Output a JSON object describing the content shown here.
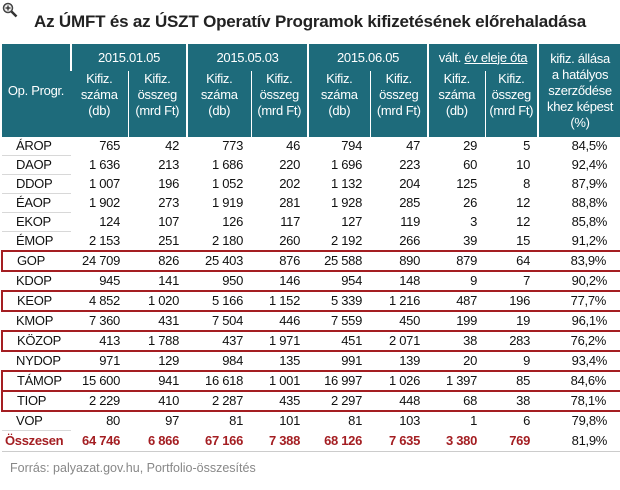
{
  "title": "Az ÚMFT és az ÚSZT Operatív Programok kifizetésének előrehaladása",
  "header": {
    "op_col": "Op. Progr.",
    "groups": [
      "2015.01.05",
      "2015.05.03",
      "2015.06.05"
    ],
    "change_prefix": "vált.",
    "change_link": "év eleje óta",
    "sub_count": [
      "Kifiz.",
      "száma",
      "(db)"
    ],
    "sub_amount": [
      "Kifiz.",
      "összeg",
      "(mrd Ft)"
    ],
    "last_col": [
      "kifiz. állása",
      "a hatályos",
      "szerződése",
      "khez képest",
      "(%)"
    ]
  },
  "rows": [
    {
      "name": "ÁROP",
      "v": [
        "765",
        "42",
        "773",
        "46",
        "794",
        "47",
        "29",
        "5",
        "84,5%"
      ],
      "highlight": false
    },
    {
      "name": "DAOP",
      "v": [
        "1 636",
        "213",
        "1 686",
        "220",
        "1 696",
        "223",
        "60",
        "10",
        "92,4%"
      ],
      "highlight": false
    },
    {
      "name": "DDOP",
      "v": [
        "1 007",
        "196",
        "1 052",
        "202",
        "1 132",
        "204",
        "125",
        "8",
        "87,9%"
      ],
      "highlight": false
    },
    {
      "name": "ÉAOP",
      "v": [
        "1 902",
        "273",
        "1 919",
        "281",
        "1 928",
        "285",
        "26",
        "12",
        "88,8%"
      ],
      "highlight": false
    },
    {
      "name": "EKOP",
      "v": [
        "124",
        "107",
        "126",
        "117",
        "127",
        "119",
        "3",
        "12",
        "85,8%"
      ],
      "highlight": false
    },
    {
      "name": "ÉMOP",
      "v": [
        "2 153",
        "251",
        "2 180",
        "260",
        "2 192",
        "266",
        "39",
        "15",
        "91,2%"
      ],
      "highlight": false
    },
    {
      "name": "GOP",
      "v": [
        "24 709",
        "826",
        "25 403",
        "876",
        "25 588",
        "890",
        "879",
        "64",
        "83,9%"
      ],
      "highlight": true
    },
    {
      "name": "KDOP",
      "v": [
        "945",
        "141",
        "950",
        "146",
        "954",
        "148",
        "9",
        "7",
        "90,2%"
      ],
      "highlight": false
    },
    {
      "name": "KEOP",
      "v": [
        "4 852",
        "1 020",
        "5 166",
        "1 152",
        "5 339",
        "1 216",
        "487",
        "196",
        "77,7%"
      ],
      "highlight": true
    },
    {
      "name": "KMOP",
      "v": [
        "7 360",
        "431",
        "7 504",
        "446",
        "7 559",
        "450",
        "199",
        "19",
        "96,1%"
      ],
      "highlight": false
    },
    {
      "name": "KÖZOP",
      "v": [
        "413",
        "1 788",
        "437",
        "1 971",
        "451",
        "2 071",
        "38",
        "283",
        "76,2%"
      ],
      "highlight": true
    },
    {
      "name": "NYDOP",
      "v": [
        "971",
        "129",
        "984",
        "135",
        "991",
        "139",
        "20",
        "9",
        "93,4%"
      ],
      "highlight": false
    },
    {
      "name": "TÁMOP",
      "v": [
        "15 600",
        "941",
        "16 618",
        "1 001",
        "16 997",
        "1 026",
        "1 397",
        "85",
        "84,6%"
      ],
      "highlight": true
    },
    {
      "name": "TIOP",
      "v": [
        "2 229",
        "410",
        "2 287",
        "435",
        "2 297",
        "448",
        "68",
        "38",
        "78,1%"
      ],
      "highlight": true
    },
    {
      "name": "VOP",
      "v": [
        "80",
        "97",
        "81",
        "101",
        "81",
        "103",
        "1",
        "6",
        "79,8%"
      ],
      "highlight": false
    }
  ],
  "total": {
    "name": "Összesen",
    "v": [
      "64 746",
      "6 866",
      "67 166",
      "7 388",
      "68 126",
      "7 635",
      "3 380",
      "769",
      "81,9%"
    ]
  },
  "source": "Forrás:  palyazat.gov.hu, Portfolio-összesítés",
  "colors": {
    "header_bg": "#1e6b7b",
    "highlight": "#a41e22",
    "total_text": "#a41e22"
  },
  "icons": {
    "zoom": "zoom-in-icon"
  }
}
